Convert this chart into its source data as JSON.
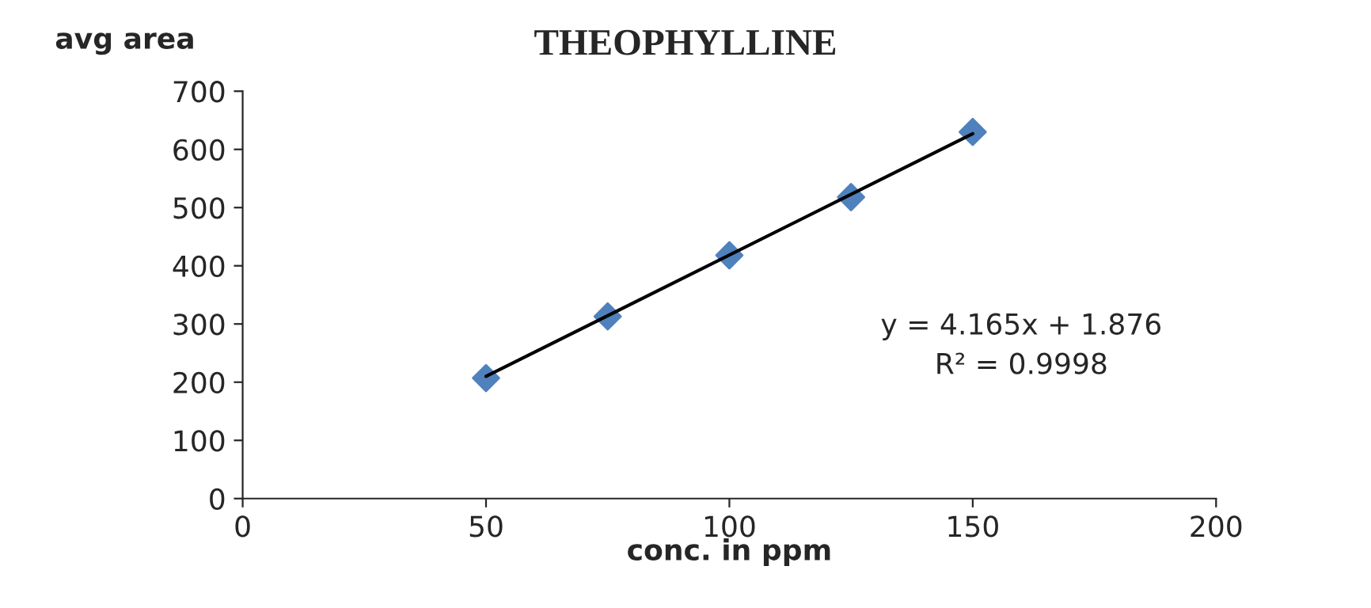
{
  "chart_data": {
    "type": "scatter",
    "title": "THEOPHYLLINE",
    "xlabel": "conc. in ppm",
    "ylabel": "avg area",
    "x": [
      50,
      75,
      100,
      125,
      150
    ],
    "series": [
      {
        "color": "#4f81bd",
        "marker": "diamond",
        "values": [
          207,
          313,
          418,
          518,
          630
        ]
      },
      {
        "type": "line",
        "color": "#000000",
        "marker": "none",
        "x": [
          50,
          150
        ],
        "values": [
          210,
          627
        ]
      }
    ],
    "xlim": [
      0,
      200
    ],
    "xticks": [
      0,
      50,
      100,
      150,
      200
    ],
    "ylim": [
      0,
      700
    ],
    "yticks": [
      0,
      100,
      200,
      300,
      400,
      500,
      600,
      700
    ],
    "grid": false,
    "annotations": [
      "y = 4.165x + 1.876",
      "R² = 0.9998"
    ]
  }
}
